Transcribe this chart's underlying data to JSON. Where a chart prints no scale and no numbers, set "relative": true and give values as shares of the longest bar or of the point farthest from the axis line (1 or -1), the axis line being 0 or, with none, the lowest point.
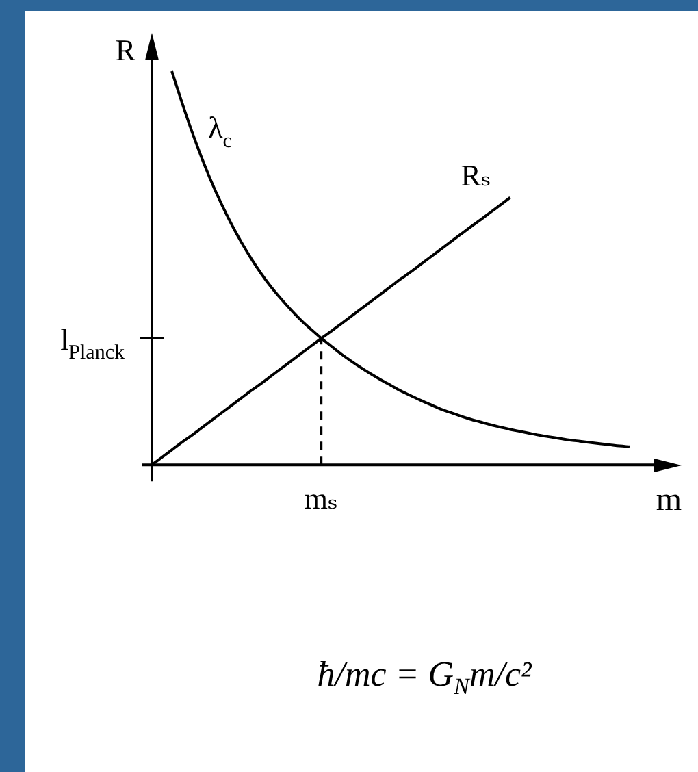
{
  "chart_data": {
    "type": "line",
    "xlabel": "m",
    "ylabel": "R",
    "relative": true,
    "categories": [
      null,
      null,
      null,
      null,
      null,
      null,
      null,
      null,
      null,
      null,
      null,
      null,
      null,
      null,
      null,
      null,
      null,
      null,
      null,
      null,
      null,
      null,
      null,
      null,
      null,
      null,
      null,
      null,
      null,
      null,
      null,
      null,
      null,
      null,
      null,
      null,
      null,
      null,
      null,
      null,
      null,
      null,
      null,
      null,
      null,
      null,
      null,
      null,
      null
    ],
    "series": [
      {
        "name": "λ$_{c}$",
        "color": "#000000",
        "values": [
          null,
          null,
          1,
          0.922,
          0.848,
          0.78,
          0.718,
          0.662,
          0.611,
          0.565,
          0.523,
          0.485,
          0.451,
          0.421,
          0.393,
          0.367,
          0.344,
          0.322,
          0.302,
          0.282,
          0.264,
          0.247,
          0.231,
          0.216,
          0.202,
          0.188,
          0.176,
          0.164,
          0.153,
          0.142,
          0.133,
          0.124,
          0.116,
          0.109,
          0.102,
          0.096,
          0.09,
          0.085,
          0.08,
          0.075,
          0.071,
          0.067,
          0.063,
          0.06,
          0.057,
          0.054,
          0.051,
          0.048,
          0.046
        ]
      },
      {
        "name": "Rₛ",
        "color": "#000000",
        "values": [
          0,
          0.019,
          0.038,
          0.057,
          0.075,
          0.094,
          0.113,
          0.132,
          0.151,
          0.17,
          0.189,
          0.207,
          0.226,
          0.245,
          0.264,
          0.283,
          0.302,
          0.321,
          0.339,
          0.358,
          0.377,
          0.396,
          0.415,
          0.434,
          0.453,
          0.472,
          0.49,
          0.509,
          0.528,
          0.547,
          0.566,
          0.585,
          0.604,
          0.622,
          0.641,
          0.66,
          0.679,
          null,
          null,
          null,
          null,
          null,
          null,
          null,
          null,
          null,
          null,
          null,
          null
        ]
      }
    ],
    "ref_lines": [
      {
        "axis": "x",
        "value": "mₛ",
        "color": "#000000",
        "line_style": "dashed"
      }
    ],
    "marker": "none",
    "legend": false,
    "annotations": [
      "l$_{Planck}$",
      "ħ/mc = G$_{N}$m/c²"
    ]
  }
}
